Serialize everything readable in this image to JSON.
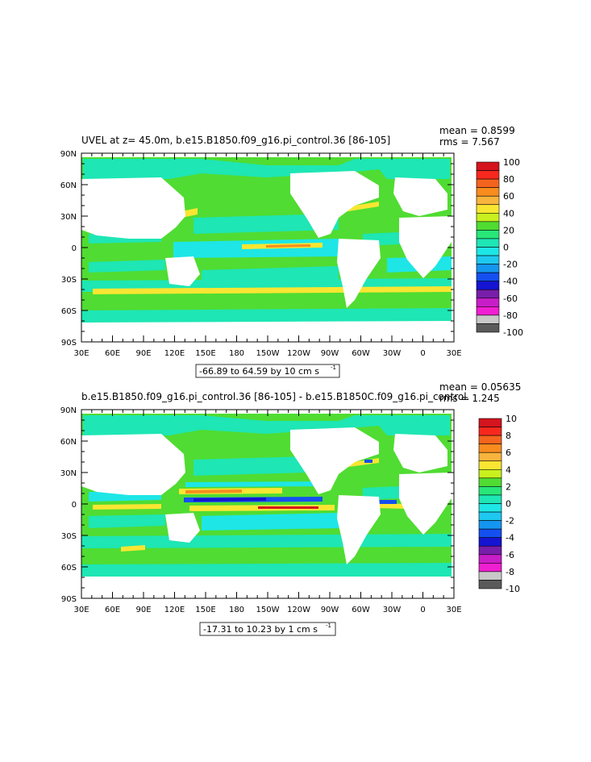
{
  "panels": [
    {
      "title": "UVEL at z=  45.0m, b.e15.B1850.f09_g16.pi_control.36  [86-105]",
      "mean_text": "mean = 0.8599",
      "rms_text": "rms = 7.567",
      "range_text": "-66.89 to 64.59 by 10 cm s",
      "range_sup": "-1",
      "lat_labels": [
        "90N",
        "60N",
        "30N",
        "0",
        "30S",
        "60S",
        "90S"
      ],
      "lon_labels": [
        "30E",
        "60E",
        "90E",
        "120E",
        "150E",
        "180",
        "150W",
        "120W",
        "90W",
        "60W",
        "30W",
        "0",
        "30E"
      ],
      "colorbar_labels": [
        "100",
        "80",
        "60",
        "40",
        "20",
        "0",
        "-20",
        "-40",
        "-60",
        "-80",
        "-100"
      ]
    },
    {
      "title": "b.e15.B1850.f09_g16.pi_control.36  [86-105]  -  b.e15.B1850C.f09_g16.pi_control.",
      "mean_text": "mean = 0.05635",
      "rms_text": "rms = 1.245",
      "range_text": "-17.31 to 10.23 by 1 cm s",
      "range_sup": "-1",
      "lat_labels": [
        "90N",
        "60N",
        "30N",
        "0",
        "30S",
        "60S",
        "90S"
      ],
      "lon_labels": [
        "30E",
        "60E",
        "90E",
        "120E",
        "150E",
        "180",
        "150W",
        "120W",
        "90W",
        "60W",
        "30W",
        "0",
        "30E"
      ],
      "colorbar_labels": [
        "10",
        "8",
        "6",
        "4",
        "2",
        "0",
        "-2",
        "-4",
        "-6",
        "-8",
        "-10"
      ]
    }
  ],
  "colorbar_colors": [
    "#d4141e",
    "#f7281e",
    "#f5641e",
    "#f88c1e",
    "#f8b43c",
    "#f8e632",
    "#c8f01e",
    "#50dc32",
    "#28e678",
    "#1ee6b4",
    "#1ee6e6",
    "#1ec8f0",
    "#1496f0",
    "#1450f0",
    "#1414d2",
    "#781eaa",
    "#c81ec8",
    "#f01ed2",
    "#c8c8c8",
    "#5a5a5a"
  ],
  "map_colors": {
    "ocean_main": "#50dc32",
    "ocean_cyan": "#1ee6b4",
    "ocean_lightcyan": "#1ee6e6",
    "strong_pos": "#f8e632",
    "strong_pos2": "#f88c1e",
    "strong_pos3": "#d4141e",
    "strong_neg": "#1450f0",
    "strong_neg2": "#1414d2",
    "land": "#ffffff"
  }
}
